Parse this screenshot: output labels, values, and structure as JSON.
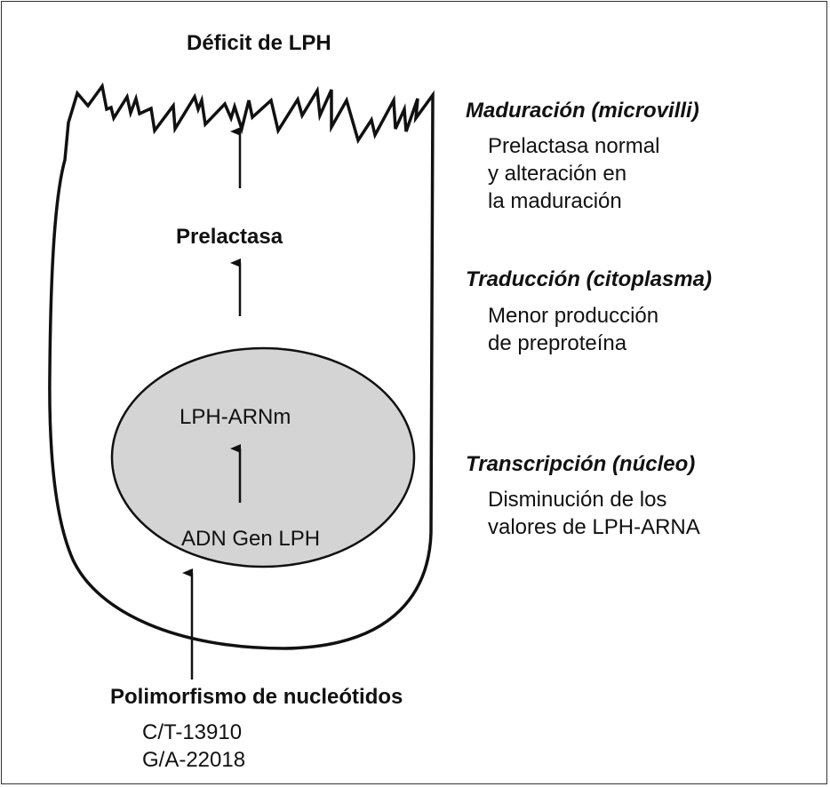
{
  "title": "Déficit de LPH",
  "cell": {
    "prelactase": "Prelactasa",
    "nucleus": {
      "mrna": "LPH-ARNm",
      "dna": "ADN Gen LPH"
    },
    "fill_color": "#d4d4d4"
  },
  "stages": [
    {
      "heading": "Maduración (microvilli)",
      "lines": [
        "Prelactasa normal",
        "y alteración en",
        "la maduración"
      ]
    },
    {
      "heading": "Traducción (citoplasma)",
      "lines": [
        "Menor producción",
        "de preproteína"
      ]
    },
    {
      "heading": "Transcripción (núcleo)",
      "lines": [
        "Disminución de los",
        "valores de LPH-ARNA"
      ]
    }
  ],
  "polymorphism": {
    "heading": "Polimorfismo de nucleótidos",
    "variants": [
      "C/T-13910",
      "G/A-22018"
    ]
  }
}
